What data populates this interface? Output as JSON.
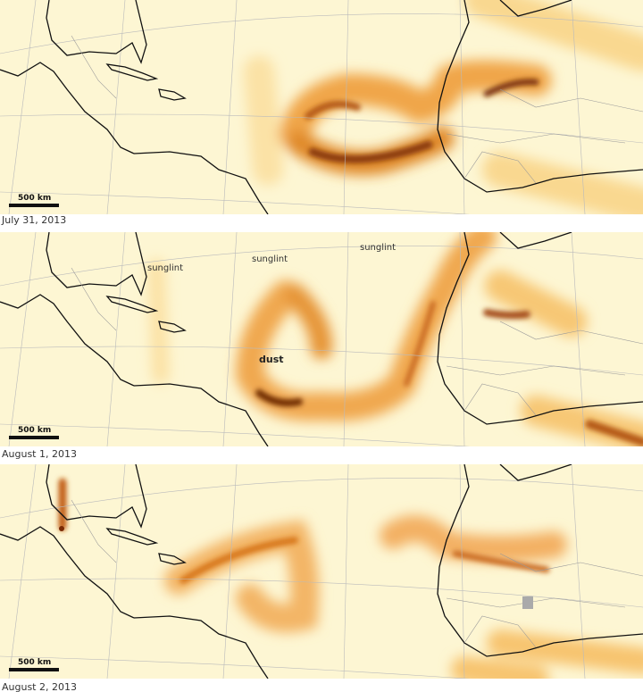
{
  "panels": [
    {
      "date": "July 31, 2013",
      "scale": "500 km"
    },
    {
      "date": "August 1, 2013",
      "scale": "500 km",
      "annotations": [
        "sunglint",
        "sunglint",
        "sunglint",
        "dust"
      ]
    },
    {
      "date": "August 2, 2013",
      "scale": "500 km"
    }
  ]
}
